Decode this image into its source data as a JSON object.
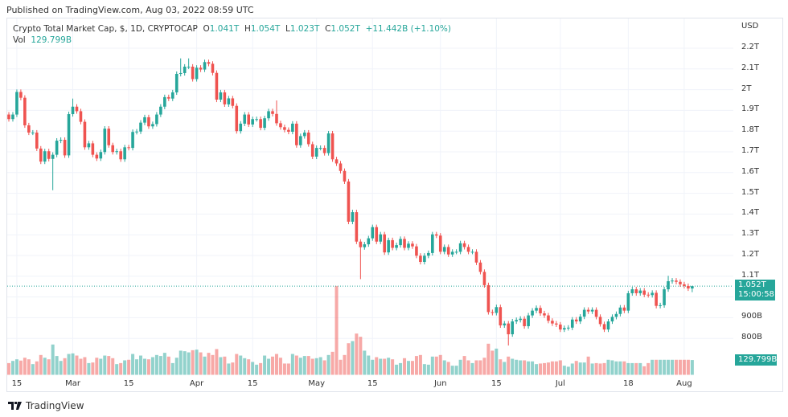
{
  "header": {
    "published": "Published on TradingView.com, Aug 03, 2022 08:59 UTC"
  },
  "legend": {
    "symbol": "Crypto Total Market Cap, $, 1D, CRYPTOCAP",
    "o_label": "O",
    "o": "1.041T",
    "h_label": "H",
    "h": "1.054T",
    "l_label": "L",
    "l": "1.023T",
    "c_label": "C",
    "c": "1.052T",
    "change": "+11.442B (+1.10%)",
    "vol_label": "Vol",
    "vol": "129.799B"
  },
  "price_axis": {
    "currency": "USD",
    "labels": [
      "2.2T",
      "2.1T",
      "2T",
      "1.9T",
      "1.8T",
      "1.7T",
      "1.6T",
      "1.5T",
      "1.4T",
      "1.3T",
      "1.2T",
      "1.1T",
      "900B",
      "800B"
    ],
    "last_price": "1.052T",
    "countdown": "15:00:58",
    "last_volume": "129.799B"
  },
  "time_axis": {
    "labels": [
      "15",
      "Mar",
      "15",
      "Apr",
      "15",
      "May",
      "15",
      "Jun",
      "15",
      "Jul",
      "18",
      "Aug"
    ]
  },
  "colors": {
    "up": "#26a69a",
    "down": "#ef5350",
    "grid": "#f0f3fa"
  },
  "footer": {
    "brand": "TradingView"
  },
  "chart_data": {
    "type": "candlestick",
    "yunit": "T USD",
    "ylim": [
      0.75,
      2.25
    ],
    "first_open": 1.88,
    "close": [
      1.858,
      1.88,
      1.989,
      1.961,
      1.828,
      1.793,
      1.793,
      1.716,
      1.653,
      1.703,
      1.666,
      1.686,
      1.754,
      1.758,
      1.683,
      1.882,
      1.918,
      1.896,
      1.845,
      1.722,
      1.741,
      1.686,
      1.668,
      1.699,
      1.812,
      1.732,
      1.699,
      1.703,
      1.664,
      1.722,
      1.719,
      1.796,
      1.798,
      1.841,
      1.867,
      1.823,
      1.834,
      1.88,
      1.918,
      1.964,
      1.957,
      1.987,
      2.076,
      2.08,
      2.111,
      2.111,
      2.051,
      2.106,
      2.097,
      2.133,
      2.125,
      2.081,
      1.952,
      1.987,
      1.929,
      1.958,
      1.922,
      1.8,
      1.836,
      1.88,
      1.832,
      1.858,
      1.858,
      1.816,
      1.862,
      1.896,
      1.883,
      1.838,
      1.819,
      1.806,
      1.797,
      1.836,
      1.732,
      1.776,
      1.793,
      1.737,
      1.677,
      1.719,
      1.719,
      1.694,
      1.789,
      1.664,
      1.644,
      1.608,
      1.557,
      1.363,
      1.409,
      1.267,
      1.24,
      1.254,
      1.283,
      1.337,
      1.267,
      1.302,
      1.215,
      1.274,
      1.237,
      1.25,
      1.28,
      1.237,
      1.257,
      1.244,
      1.199,
      1.169,
      1.199,
      1.212,
      1.302,
      1.296,
      1.218,
      1.241,
      1.205,
      1.218,
      1.218,
      1.259,
      1.241,
      1.218,
      1.218,
      1.166,
      1.121,
      1.057,
      0.927,
      0.923,
      0.951,
      0.863,
      0.872,
      0.82,
      0.882,
      0.889,
      0.895,
      0.859,
      0.911,
      0.934,
      0.947,
      0.921,
      0.911,
      0.885,
      0.872,
      0.867,
      0.843,
      0.85,
      0.852,
      0.891,
      0.882,
      0.905,
      0.938,
      0.93,
      0.938,
      0.904,
      0.869,
      0.843,
      0.882,
      0.904,
      0.918,
      0.949,
      0.934,
      1.018,
      1.037,
      1.018,
      1.031,
      1.011,
      1.009,
      1.02,
      0.957,
      0.96,
      1.037,
      1.076,
      1.079,
      1.073,
      1.061,
      1.053,
      1.041,
      1.052
    ],
    "notable_wicks": [
      {
        "candle": 12,
        "low": 1.515
      },
      {
        "candle": 17,
        "high": 1.957
      },
      {
        "candle": 44,
        "high": 2.151
      },
      {
        "candle": 46,
        "high": 2.151
      },
      {
        "candle": 68,
        "high": 1.948
      },
      {
        "candle": 89,
        "low": 1.086
      },
      {
        "candle": 126,
        "low": 0.766
      },
      {
        "candle": 166,
        "high": 1.102
      },
      {
        "candle": 172,
        "high": 1.054,
        "low": 1.023
      }
    ],
    "volume_unit": "B",
    "volume": [
      103,
      122,
      136,
      125,
      150,
      136,
      94,
      118,
      174,
      150,
      136,
      266,
      165,
      122,
      146,
      183,
      188,
      169,
      141,
      155,
      103,
      108,
      150,
      141,
      169,
      165,
      146,
      94,
      103,
      127,
      132,
      183,
      136,
      169,
      141,
      136,
      155,
      174,
      165,
      193,
      160,
      103,
      150,
      212,
      207,
      197,
      216,
      221,
      197,
      160,
      193,
      174,
      226,
      155,
      160,
      99,
      108,
      183,
      169,
      146,
      136,
      113,
      89,
      103,
      169,
      141,
      160,
      183,
      150,
      99,
      99,
      183,
      169,
      150,
      165,
      165,
      141,
      146,
      155,
      127,
      174,
      202,
      780,
      132,
      174,
      277,
      296,
      362,
      334,
      212,
      169,
      132,
      155,
      141,
      141,
      150,
      136,
      89,
      103,
      146,
      122,
      122,
      165,
      174,
      94,
      89,
      160,
      160,
      174,
      127,
      113,
      80,
      80,
      132,
      165,
      127,
      103,
      127,
      127,
      150,
      273,
      212,
      230,
      136,
      113,
      160,
      141,
      132,
      127,
      127,
      118,
      118,
      94,
      99,
      103,
      108,
      118,
      118,
      127,
      80,
      71,
      99,
      122,
      108,
      108,
      160,
      99,
      103,
      99,
      103,
      132,
      127,
      118,
      118,
      118,
      103,
      103,
      103,
      103,
      75,
      103,
      132,
      132,
      132,
      132,
      132,
      132,
      132,
      132,
      132,
      132,
      129.799
    ]
  }
}
